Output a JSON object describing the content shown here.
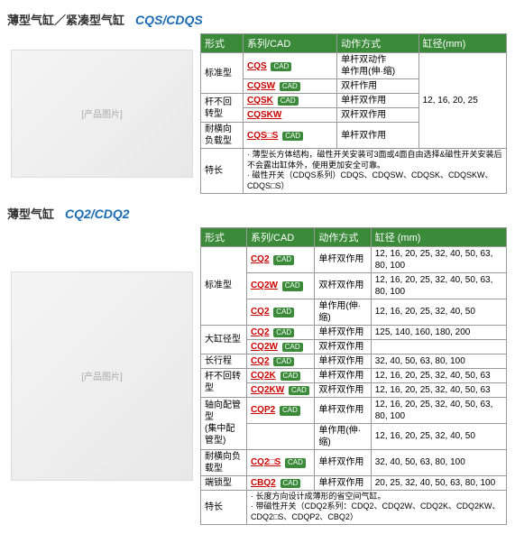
{
  "section1": {
    "title": "薄型气缸／紧凑型气缸",
    "code": "CQS/CDQS",
    "headers": [
      "形式",
      "系列/CAD",
      "动作方式",
      "缸径(mm)"
    ],
    "rows": [
      {
        "type": "标准型",
        "typeRowspan": 2,
        "series": "CQS",
        "hasCad": true,
        "action": "单杆双动作\n单作用(伸·缩)",
        "diam": "12, 16, 20, 25",
        "diamRowspan": 5
      },
      {
        "series": "CQSW",
        "hasCad": true,
        "action": "双杆作用"
      },
      {
        "type": "杆不回转型",
        "typeRowspan": 2,
        "series": "CQSK",
        "hasCad": true,
        "action": "单杆双作用"
      },
      {
        "series": "CQSKW",
        "hasCad": false,
        "action": "双杆双作用"
      },
      {
        "type": "耐横向负载型",
        "series": "CQS□S",
        "hasCad": true,
        "action": "单杆双作用"
      }
    ],
    "featureLabel": "特长",
    "features": "· 薄型长方体结构，磁性开关安装可3面或4面自由选择&磁性开关安装后不会露出缸体外，使用更加安全可靠。\n· 磁性开关（CDQS系列）CDQS、CDQSW、CDQSK、CDQSKW、CDQS□S）"
  },
  "section2": {
    "title": "薄型气缸",
    "code": "CQ2/CDQ2",
    "headers": [
      "形式",
      "系列/CAD",
      "动作方式",
      "缸径 (mm)"
    ],
    "rows": [
      {
        "type": "标准型",
        "typeRowspan": 3,
        "series": "CQ2",
        "hasCad": true,
        "action": "单杆双作用",
        "diam": "12, 16, 20, 25, 32, 40, 50, 63, 80, 100"
      },
      {
        "series": "CQ2W",
        "hasCad": true,
        "action": "双杆双作用",
        "diam": "12, 16, 20, 25, 32, 40, 50, 63, 80, 100"
      },
      {
        "series": "CQ2",
        "hasCad": true,
        "action": "单作用(伸·缩)",
        "diam": "12, 16, 20, 25, 32, 40, 50"
      },
      {
        "type": "大缸径型",
        "typeRowspan": 2,
        "series": "CQ2",
        "hasCad": true,
        "action": "单杆双作用",
        "diam": "125, 140, 160, 180, 200"
      },
      {
        "series": "CQ2W",
        "hasCad": true,
        "action": "双杆双作用",
        "diam": ""
      },
      {
        "type": "长行程",
        "series": "CQ2",
        "hasCad": true,
        "action": "单杆双作用",
        "diam": "32, 40, 50, 63, 80, 100"
      },
      {
        "type": "杆不回转型",
        "typeRowspan": 2,
        "series": "CQ2K",
        "hasCad": true,
        "action": "单杆双作用",
        "diam": "12, 16, 20, 25, 32, 40, 50, 63"
      },
      {
        "series": "CQ2KW",
        "hasCad": true,
        "action": "双杆双作用",
        "diam": "12, 16, 20, 25, 32, 40, 50, 63"
      },
      {
        "type": "轴向配管型\n(集中配管型)",
        "typeRowspan": 2,
        "series": "CQP2",
        "hasCad": true,
        "action": "单杆双作用",
        "diam": "12, 16, 20, 25, 32, 40, 50, 63, 80, 100"
      },
      {
        "series": "",
        "hasCad": false,
        "action": "单作用(伸·缩)",
        "diam": "12, 16, 20, 25, 32, 40, 50"
      },
      {
        "type": "耐横向负载型",
        "series": "CQ2□S",
        "hasCad": true,
        "action": "单杆双作用",
        "diam": "32, 40, 50, 63, 80, 100"
      },
      {
        "type": "端锁型",
        "series": "CBQ2",
        "hasCad": true,
        "action": "单杆双作用",
        "diam": "20, 25, 32, 40, 50, 63, 80, 100"
      }
    ],
    "featureLabel": "特长",
    "features": "· 长度方向设计成薄形的省空间气缸。\n· 带磁性开关（CDQ2系列：CDQ2、CDQ2W、CDQ2K、CDQ2KW、CDQ2□S、CDQP2、CBQ2）"
  },
  "imgPlaceholder": "[产品图片]",
  "cadLabel": "CAD"
}
